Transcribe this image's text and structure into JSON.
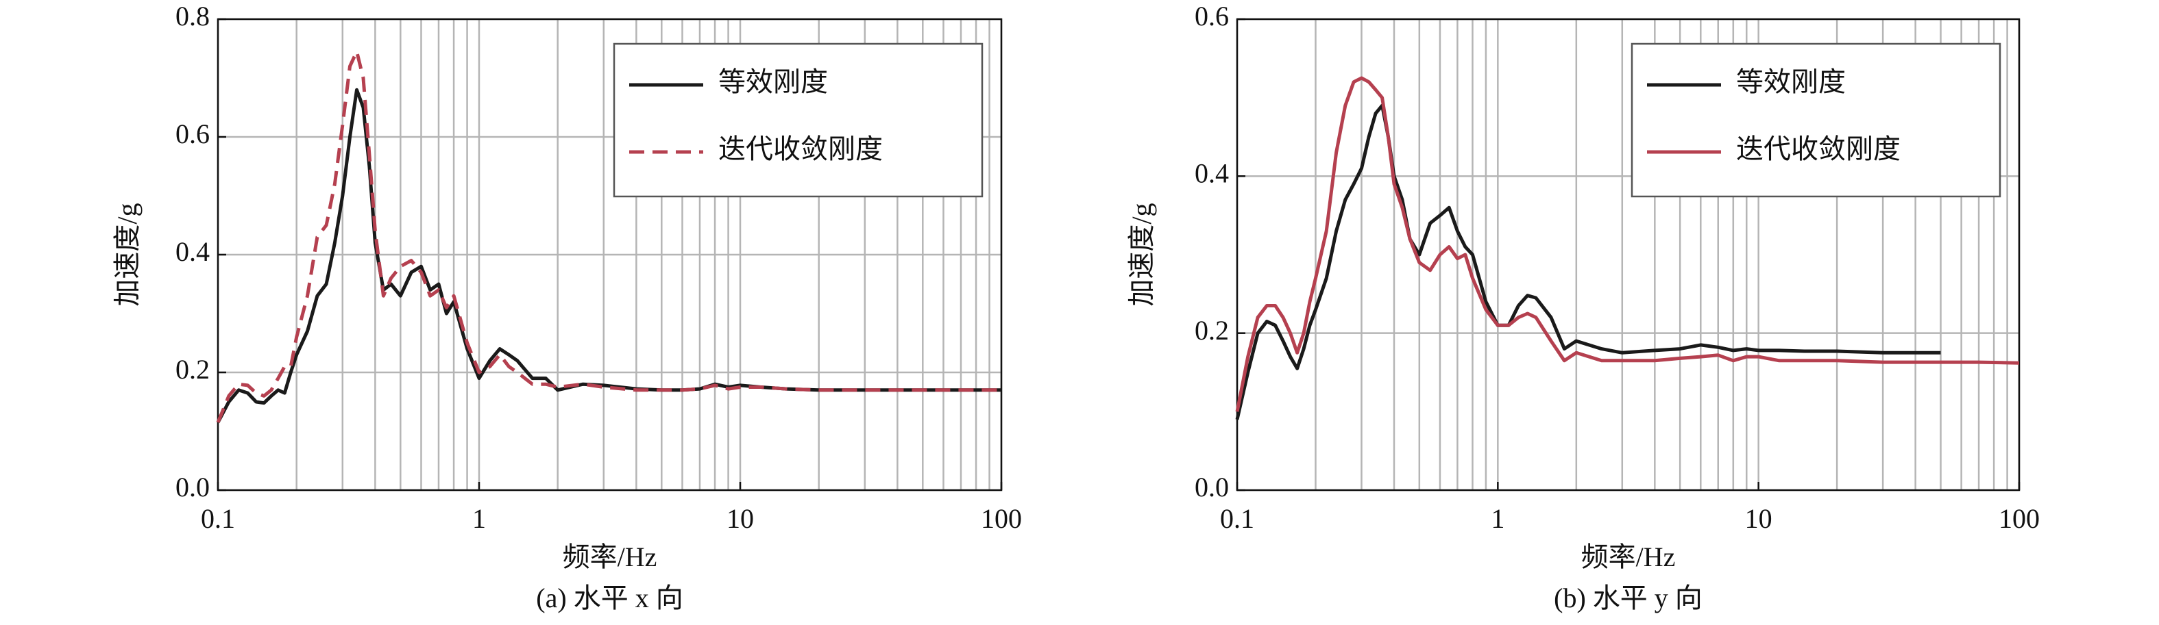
{
  "chart_data": [
    {
      "type": "line",
      "caption": "(a) 水平 x 向",
      "xlabel": "频率/Hz",
      "ylabel": "加速度/g",
      "xlog": true,
      "grid": true,
      "legend": "upper right",
      "xlim": [
        0.1,
        100
      ],
      "xticks": [
        0.1,
        1,
        10,
        100
      ],
      "ylim": [
        0,
        0.8
      ],
      "yticks": [
        {
          "value": 0,
          "label": "0.0"
        },
        0.2,
        0.4,
        0.6,
        0.8
      ],
      "x": [
        0.1,
        0.11,
        0.12,
        0.13,
        0.14,
        0.15,
        0.16,
        0.17,
        0.18,
        0.19,
        0.2,
        0.22,
        0.24,
        0.26,
        0.28,
        0.3,
        0.32,
        0.34,
        0.36,
        0.38,
        0.4,
        0.43,
        0.46,
        0.5,
        0.55,
        0.6,
        0.65,
        0.7,
        0.75,
        0.8,
        0.9,
        1.0,
        1.1,
        1.2,
        1.3,
        1.4,
        1.6,
        1.8,
        2,
        2.5,
        3,
        4,
        5,
        6,
        7,
        8,
        9,
        10,
        12,
        15,
        20,
        30,
        50,
        70,
        100
      ],
      "series": [
        {
          "name": "等效刚度",
          "color": "#1a1a1a",
          "linestyle": "solid",
          "values": [
            0.115,
            0.15,
            0.17,
            0.165,
            0.15,
            0.148,
            0.16,
            0.17,
            0.165,
            0.2,
            0.23,
            0.27,
            0.33,
            0.35,
            0.42,
            0.5,
            0.6,
            0.68,
            0.65,
            0.55,
            0.42,
            0.34,
            0.35,
            0.33,
            0.37,
            0.38,
            0.34,
            0.35,
            0.3,
            0.32,
            0.24,
            0.19,
            0.22,
            0.24,
            0.23,
            0.22,
            0.19,
            0.19,
            0.17,
            0.18,
            0.178,
            0.172,
            0.17,
            0.17,
            0.172,
            0.18,
            0.175,
            0.178,
            0.175,
            0.172,
            0.17,
            0.17,
            0.17,
            0.17,
            0.17
          ]
        },
        {
          "name": "迭代收敛刚度",
          "color": "#b5404f",
          "linestyle": "dashed",
          "values": [
            0.115,
            0.16,
            0.18,
            0.178,
            0.165,
            0.16,
            0.17,
            0.19,
            0.21,
            0.21,
            0.26,
            0.33,
            0.43,
            0.45,
            0.52,
            0.62,
            0.72,
            0.745,
            0.7,
            0.57,
            0.44,
            0.33,
            0.36,
            0.38,
            0.39,
            0.37,
            0.33,
            0.34,
            0.31,
            0.33,
            0.25,
            0.2,
            0.21,
            0.23,
            0.21,
            0.2,
            0.18,
            0.18,
            0.175,
            0.18,
            0.175,
            0.17,
            0.17,
            0.17,
            0.172,
            0.178,
            0.172,
            0.175,
            0.175,
            0.172,
            0.17,
            0.17,
            0.17,
            0.17,
            0.17
          ]
        }
      ]
    },
    {
      "type": "line",
      "caption": "(b) 水平 y 向",
      "xlabel": "频率/Hz",
      "ylabel": "加速度/g",
      "xlog": true,
      "grid": true,
      "legend": "upper right",
      "xlim": [
        0.1,
        100
      ],
      "xticks": [
        0.1,
        1,
        10,
        100
      ],
      "ylim": [
        0,
        0.6
      ],
      "yticks": [
        {
          "value": 0,
          "label": "0.0"
        },
        0.2,
        0.4,
        0.6
      ],
      "x": [
        0.1,
        0.11,
        0.12,
        0.13,
        0.14,
        0.15,
        0.16,
        0.17,
        0.18,
        0.19,
        0.2,
        0.22,
        0.24,
        0.26,
        0.28,
        0.3,
        0.32,
        0.34,
        0.36,
        0.38,
        0.4,
        0.43,
        0.46,
        0.5,
        0.55,
        0.6,
        0.65,
        0.7,
        0.75,
        0.8,
        0.9,
        1.0,
        1.1,
        1.2,
        1.3,
        1.4,
        1.6,
        1.8,
        2,
        2.5,
        3,
        4,
        5,
        6,
        7,
        8,
        9,
        10,
        12,
        15,
        20,
        30,
        50,
        70,
        100
      ],
      "series": [
        {
          "name": "等效刚度",
          "color": "#1a1a1a",
          "linestyle": "solid",
          "values": [
            0.09,
            0.15,
            0.2,
            0.215,
            0.21,
            0.19,
            0.17,
            0.155,
            0.18,
            0.21,
            0.23,
            0.27,
            0.33,
            0.37,
            0.39,
            0.41,
            0.45,
            0.48,
            0.49,
            0.45,
            0.4,
            0.37,
            0.32,
            0.3,
            0.34,
            0.35,
            0.36,
            0.33,
            0.31,
            0.3,
            0.24,
            0.21,
            0.21,
            0.235,
            0.248,
            0.245,
            0.22,
            0.18,
            0.19,
            0.18,
            0.175,
            0.178,
            0.18,
            0.185,
            0.182,
            0.178,
            0.18,
            0.178,
            0.178,
            0.177,
            0.177,
            0.175,
            0.175,
            null,
            null
          ]
        },
        {
          "name": "迭代收敛刚度",
          "color": "#b5404f",
          "linestyle": "solid",
          "values": [
            0.1,
            0.17,
            0.22,
            0.235,
            0.235,
            0.22,
            0.2,
            0.175,
            0.2,
            0.24,
            0.27,
            0.33,
            0.43,
            0.49,
            0.52,
            0.525,
            0.52,
            0.51,
            0.5,
            0.45,
            0.39,
            0.36,
            0.32,
            0.29,
            0.28,
            0.3,
            0.31,
            0.295,
            0.3,
            0.27,
            0.23,
            0.21,
            0.21,
            0.22,
            0.225,
            0.22,
            0.19,
            0.165,
            0.175,
            0.165,
            0.165,
            0.165,
            0.168,
            0.17,
            0.172,
            0.165,
            0.17,
            0.17,
            0.165,
            0.165,
            0.165,
            0.163,
            0.163,
            0.163,
            0.162
          ]
        }
      ]
    }
  ]
}
